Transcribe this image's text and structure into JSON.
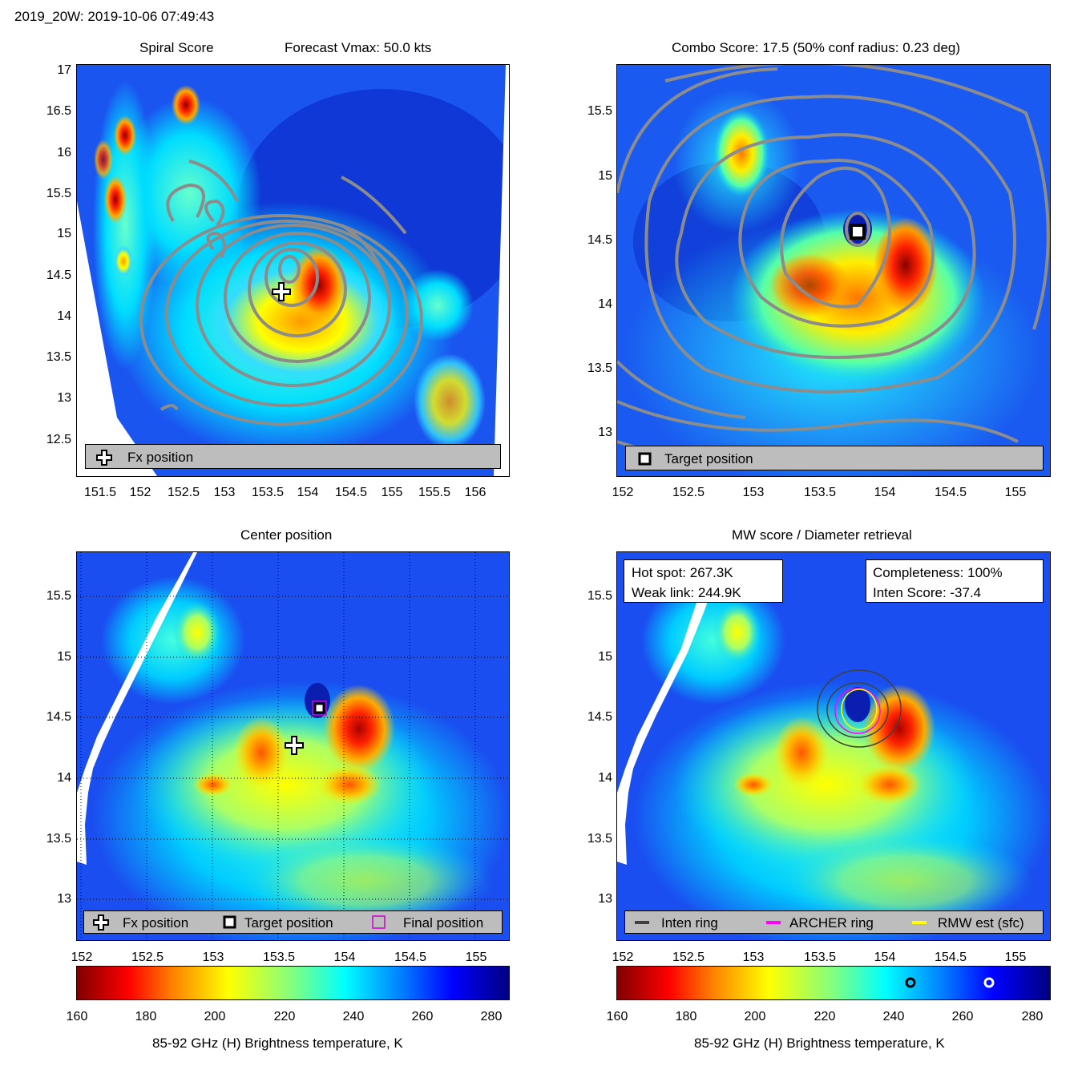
{
  "header": {
    "title": "2019_20W: 2019-10-06 07:49:43"
  },
  "colors": {
    "contour": "#8c8c8c",
    "legend_bg": "#bdbdbd",
    "archer_ring": "#ff00ff",
    "rmw_ring": "#ffff00",
    "inten_ring": "#404040"
  },
  "panels": {
    "spiral": {
      "title_left": "Spiral Score",
      "title_right": "Forecast Vmax: 50.0 kts",
      "legend": {
        "fx_label": "Fx position"
      },
      "yticks": [
        "17",
        "16.5",
        "16",
        "15.5",
        "15",
        "14.5",
        "14",
        "13.5",
        "13",
        "12.5"
      ],
      "xticks": [
        "151.5",
        "152",
        "152.5",
        "153",
        "153.5",
        "154",
        "154.5",
        "155",
        "155.5",
        "156"
      ]
    },
    "combo": {
      "title": "Combo Score: 17.5  (50% conf radius: 0.23 deg)",
      "legend": {
        "target_label": "Target position"
      },
      "yticks": [
        "15.5",
        "15",
        "14.5",
        "14",
        "13.5",
        "13"
      ],
      "xticks": [
        "152",
        "152.5",
        "153",
        "153.5",
        "154",
        "154.5",
        "155"
      ]
    },
    "center": {
      "title": "Center position",
      "legend": {
        "fx_label": "Fx position",
        "target_label": "Target position",
        "final_label": "Final position"
      },
      "yticks": [
        "15.5",
        "15",
        "14.5",
        "14",
        "13.5",
        "13"
      ],
      "xticks": [
        "152",
        "152.5",
        "153",
        "153.5",
        "154",
        "154.5",
        "155"
      ],
      "colorbar_ticks": [
        "160",
        "180",
        "200",
        "220",
        "240",
        "260",
        "280"
      ],
      "colorbar_label": "85-92 GHz (H) Brightness temperature, K"
    },
    "mw": {
      "title": "MW score / Diameter retrieval",
      "hot_spot": "Hot spot: 267.3K",
      "weak_link": "Weak link: 244.9K",
      "completeness": "Completeness: 100%",
      "inten_score": "Inten Score: -37.4",
      "legend": {
        "inten_label": "Inten ring",
        "archer_label": "ARCHER ring",
        "rmw_label": "RMW est (sfc)"
      },
      "yticks": [
        "15.5",
        "15",
        "14.5",
        "14",
        "13.5",
        "13"
      ],
      "xticks": [
        "152",
        "152.5",
        "153",
        "153.5",
        "154",
        "154.5",
        "155"
      ],
      "colorbar_ticks": [
        "160",
        "180",
        "200",
        "220",
        "240",
        "260",
        "280"
      ],
      "colorbar_label": "85-92 GHz (H) Brightness temperature, K"
    }
  },
  "chart_data": [
    {
      "type": "heatmap",
      "title": "Spiral Score",
      "subtitle": "Forecast Vmax: 50.0 kts",
      "xlim": [
        151.2,
        156.4
      ],
      "ylim": [
        12.05,
        17.05
      ],
      "markers": [
        {
          "name": "Fx position",
          "x": 153.6,
          "y": 14.25
        }
      ],
      "hot_spots": [
        {
          "x": 154.1,
          "y": 14.4
        },
        {
          "x": 152.55,
          "y": 16.55
        },
        {
          "x": 151.8,
          "y": 16.2
        },
        {
          "x": 151.7,
          "y": 15.4
        }
      ]
    },
    {
      "type": "heatmap",
      "title": "Combo Score: 17.5  (50% conf radius: 0.23 deg)",
      "xlim": [
        151.97,
        155.27
      ],
      "ylim": [
        12.65,
        15.85
      ],
      "markers": [
        {
          "name": "Target position",
          "x": 153.8,
          "y": 14.57
        }
      ]
    },
    {
      "type": "heatmap",
      "title": "Center position",
      "xlim": [
        151.97,
        155.27
      ],
      "ylim": [
        12.65,
        15.85
      ],
      "colorbar": {
        "min": 160,
        "max": 285,
        "ticks": [
          160,
          180,
          200,
          220,
          240,
          260,
          280
        ],
        "label": "85-92 GHz (H) Brightness temperature, K"
      },
      "markers": [
        {
          "name": "Fx position",
          "x": 153.6,
          "y": 14.25
        },
        {
          "name": "Target position",
          "x": 153.8,
          "y": 14.57
        },
        {
          "name": "Final position",
          "x": 153.8,
          "y": 14.57
        }
      ]
    },
    {
      "type": "heatmap",
      "title": "MW score / Diameter retrieval",
      "xlim": [
        151.97,
        155.27
      ],
      "ylim": [
        12.65,
        15.85
      ],
      "colorbar": {
        "min": 160,
        "max": 285,
        "ticks": [
          160,
          180,
          200,
          220,
          240,
          260,
          280
        ],
        "label": "85-92 GHz (H) Brightness temperature, K",
        "markers": [
          {
            "name": "Weak link",
            "value": 244.9
          },
          {
            "name": "Hot spot",
            "value": 267.3
          }
        ]
      },
      "rings": [
        {
          "name": "Inten ring",
          "x": 153.78,
          "y": 14.52
        },
        {
          "name": "ARCHER ring",
          "x": 153.78,
          "y": 14.55
        },
        {
          "name": "RMW est (sfc)",
          "x": 153.78,
          "y": 14.57
        }
      ]
    }
  ]
}
